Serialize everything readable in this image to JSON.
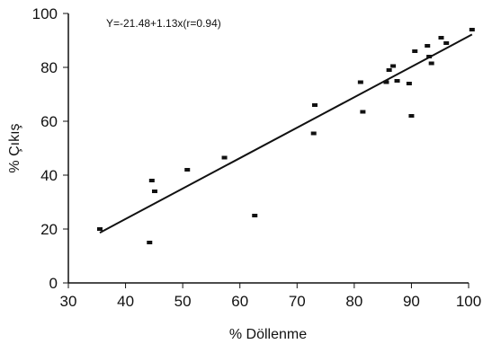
{
  "chart_data": {
    "type": "scatter",
    "title": "",
    "xlabel": "% Döllenme",
    "ylabel": "% Çıkış",
    "xlim": [
      30,
      100
    ],
    "ylim": [
      0,
      100
    ],
    "x_ticks": [
      "30",
      "40",
      "50",
      "60",
      "70",
      "80",
      "90",
      "100"
    ],
    "y_ticks": [
      "0",
      "20",
      "40",
      "60",
      "80",
      "100"
    ],
    "grid": false,
    "legend": "none",
    "annotation": "Y=-21.48+1.13x(r=0.94)",
    "points": [
      {
        "x": 35.5,
        "y": 20
      },
      {
        "x": 44.2,
        "y": 15
      },
      {
        "x": 44.6,
        "y": 38
      },
      {
        "x": 45.1,
        "y": 34
      },
      {
        "x": 50.8,
        "y": 42
      },
      {
        "x": 57.3,
        "y": 46.5
      },
      {
        "x": 62.6,
        "y": 25
      },
      {
        "x": 72.9,
        "y": 55.5
      },
      {
        "x": 73.1,
        "y": 66
      },
      {
        "x": 81.1,
        "y": 74.5
      },
      {
        "x": 81.5,
        "y": 63.5
      },
      {
        "x": 85.6,
        "y": 74.5
      },
      {
        "x": 86.1,
        "y": 79
      },
      {
        "x": 86.8,
        "y": 80.5
      },
      {
        "x": 87.5,
        "y": 75
      },
      {
        "x": 89.6,
        "y": 74
      },
      {
        "x": 90.0,
        "y": 62
      },
      {
        "x": 90.6,
        "y": 86
      },
      {
        "x": 92.8,
        "y": 88
      },
      {
        "x": 93.1,
        "y": 84
      },
      {
        "x": 93.5,
        "y": 81.5
      },
      {
        "x": 95.2,
        "y": 91
      },
      {
        "x": 96.1,
        "y": 89
      },
      {
        "x": 100.6,
        "y": 94
      }
    ],
    "trendline": {
      "intercept": -21.48,
      "slope": 1.13,
      "x_start": 35.5,
      "x_end": 100.6
    },
    "colors": {
      "marker": "#111111",
      "line": "#111111",
      "axis": "#111111"
    }
  }
}
